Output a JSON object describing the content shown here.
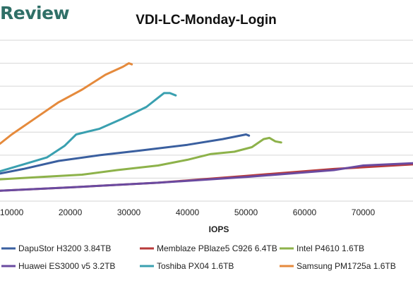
{
  "brand": {
    "text": "Review"
  },
  "chart_data": {
    "type": "line",
    "title": "VDI-LC-Monday-Login",
    "xlabel": "IOPS",
    "ylabel": "",
    "xlim": [
      8000,
      78500
    ],
    "ylim": [
      0,
      7
    ],
    "x_ticks": [
      "10000",
      "20000",
      "30000",
      "40000",
      "50000",
      "60000",
      "70000"
    ],
    "grid": true,
    "legend_position": "bottom",
    "series": [
      {
        "name": "DapuStor H3200 3.84TB",
        "color": "#3a5f9f",
        "points": [
          [
            8000,
            1.2
          ],
          [
            12000,
            1.4
          ],
          [
            18000,
            1.75
          ],
          [
            25000,
            2.0
          ],
          [
            32000,
            2.2
          ],
          [
            40000,
            2.45
          ],
          [
            46000,
            2.7
          ],
          [
            50000,
            2.9
          ],
          [
            50500,
            2.85
          ]
        ]
      },
      {
        "name": "Memblaze PBlaze5 C926 6.4TB",
        "color": "#b83a3a",
        "points": [
          [
            8000,
            0.45
          ],
          [
            20000,
            0.6
          ],
          [
            35000,
            0.8
          ],
          [
            50000,
            1.1
          ],
          [
            65000,
            1.4
          ],
          [
            78500,
            1.6
          ]
        ]
      },
      {
        "name": "Intel P4610 1.6TB",
        "color": "#8db24a",
        "points": [
          [
            8000,
            0.95
          ],
          [
            15000,
            1.05
          ],
          [
            22000,
            1.15
          ],
          [
            28000,
            1.35
          ],
          [
            35000,
            1.55
          ],
          [
            40000,
            1.8
          ],
          [
            44000,
            2.05
          ],
          [
            48000,
            2.15
          ],
          [
            51000,
            2.35
          ],
          [
            53000,
            2.7
          ],
          [
            54000,
            2.75
          ],
          [
            55000,
            2.6
          ],
          [
            56000,
            2.55
          ]
        ]
      },
      {
        "name": "Huawei ES3000 v5 3.2TB",
        "color": "#6a4aa0",
        "points": [
          [
            8000,
            0.45
          ],
          [
            20000,
            0.6
          ],
          [
            35000,
            0.8
          ],
          [
            50000,
            1.05
          ],
          [
            65000,
            1.35
          ],
          [
            70000,
            1.55
          ],
          [
            78500,
            1.65
          ]
        ]
      },
      {
        "name": "Toshiba PX04 1.6TB",
        "color": "#3aa0b0",
        "points": [
          [
            8000,
            1.3
          ],
          [
            12000,
            1.6
          ],
          [
            16000,
            1.9
          ],
          [
            19000,
            2.4
          ],
          [
            21000,
            2.9
          ],
          [
            25000,
            3.15
          ],
          [
            29000,
            3.6
          ],
          [
            33000,
            4.1
          ],
          [
            35000,
            4.5
          ],
          [
            36000,
            4.7
          ],
          [
            37000,
            4.7
          ],
          [
            38000,
            4.6
          ]
        ]
      },
      {
        "name": "Samsung PM1725a 1.6TB",
        "color": "#e58a3c",
        "points": [
          [
            8000,
            2.5
          ],
          [
            10000,
            2.9
          ],
          [
            14000,
            3.6
          ],
          [
            18000,
            4.3
          ],
          [
            22000,
            4.85
          ],
          [
            26000,
            5.5
          ],
          [
            29000,
            5.85
          ],
          [
            30000,
            6.0
          ],
          [
            30500,
            5.95
          ]
        ]
      }
    ]
  }
}
